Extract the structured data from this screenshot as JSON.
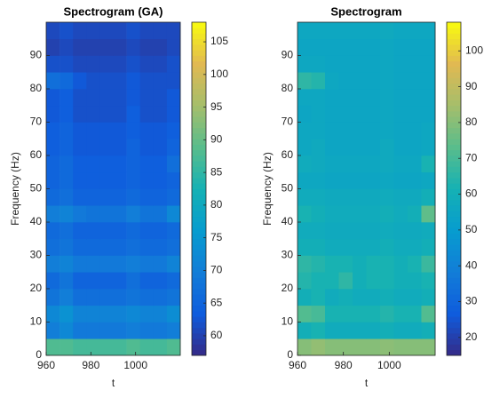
{
  "chart_data": [
    {
      "type": "heatmap",
      "title": "Spectrogram (GA)",
      "xlabel": "t",
      "ylabel": "Frequency (Hz)",
      "colormap": "parula",
      "x": [
        963,
        969,
        975,
        981,
        987,
        993,
        999,
        1005,
        1011,
        1017
      ],
      "y": [
        2.5,
        7.5,
        12.5,
        17.5,
        22.5,
        27.5,
        32.5,
        37.5,
        42.5,
        47.5,
        52.5,
        57.5,
        62.5,
        67.5,
        72.5,
        77.5,
        82.5,
        87.5,
        92.5,
        97.5
      ],
      "z": [
        [
          88,
          88,
          87,
          87,
          87,
          87,
          88,
          87,
          87,
          88
        ],
        [
          70,
          72,
          69,
          69,
          69,
          69,
          70,
          69,
          69,
          70
        ],
        [
          72,
          74,
          71,
          71,
          71,
          71,
          72,
          71,
          71,
          73
        ],
        [
          68,
          70,
          67,
          67,
          67,
          67,
          68,
          67,
          67,
          68
        ],
        [
          66,
          68,
          65,
          65,
          65,
          65,
          67,
          65,
          65,
          66
        ],
        [
          70,
          71,
          69,
          69,
          69,
          69,
          70,
          69,
          69,
          71
        ],
        [
          67,
          68,
          66,
          66,
          66,
          66,
          67,
          66,
          66,
          67
        ],
        [
          66,
          67,
          65,
          65,
          65,
          65,
          66,
          65,
          65,
          66
        ],
        [
          70,
          71,
          69,
          68,
          68,
          68,
          70,
          68,
          68,
          72
        ],
        [
          66,
          67,
          65,
          65,
          65,
          65,
          66,
          65,
          65,
          66
        ],
        [
          65,
          66,
          64,
          64,
          64,
          64,
          65,
          64,
          64,
          65
        ],
        [
          65,
          66,
          64,
          64,
          64,
          64,
          65,
          64,
          64,
          67
        ],
        [
          64,
          65,
          63,
          63,
          63,
          63,
          65,
          63,
          63,
          65
        ],
        [
          64,
          65,
          63,
          63,
          63,
          63,
          64,
          63,
          63,
          64
        ],
        [
          63,
          64,
          62,
          62,
          62,
          62,
          64,
          62,
          62,
          63
        ],
        [
          63,
          64,
          62,
          62,
          62,
          62,
          63,
          62,
          62,
          63
        ],
        [
          67,
          66,
          63,
          62,
          62,
          62,
          63,
          62,
          62,
          62
        ],
        [
          62,
          62,
          61,
          61,
          61,
          61,
          62,
          61,
          61,
          62
        ],
        [
          60,
          61,
          60,
          60,
          60,
          60,
          61,
          60,
          60,
          61
        ],
        [
          61,
          62,
          61,
          61,
          61,
          61,
          62,
          61,
          61,
          61
        ]
      ],
      "xlim": [
        960,
        1020
      ],
      "xticks": [
        960,
        980,
        1000
      ],
      "ylim": [
        0,
        100
      ],
      "yticks": [
        0,
        10,
        20,
        30,
        40,
        50,
        60,
        70,
        80,
        90
      ],
      "clim": [
        57,
        108
      ],
      "cticks": [
        60,
        65,
        70,
        75,
        80,
        85,
        90,
        95,
        100,
        105
      ]
    },
    {
      "type": "heatmap",
      "title": "Spectrogram",
      "xlabel": "t",
      "ylabel": "Frequency (Hz)",
      "colormap": "parula",
      "x": [
        963,
        969,
        975,
        981,
        987,
        993,
        999,
        1005,
        1011,
        1017
      ],
      "y": [
        2.5,
        7.5,
        12.5,
        17.5,
        22.5,
        27.5,
        32.5,
        37.5,
        42.5,
        47.5,
        52.5,
        57.5,
        62.5,
        67.5,
        72.5,
        77.5,
        82.5,
        87.5,
        92.5,
        97.5
      ],
      "z": [
        [
          80,
          82,
          80,
          80,
          80,
          80,
          81,
          80,
          80,
          80
        ],
        [
          60,
          62,
          58,
          58,
          58,
          58,
          60,
          58,
          58,
          60
        ],
        [
          72,
          70,
          62,
          62,
          62,
          62,
          64,
          62,
          62,
          72
        ],
        [
          60,
          62,
          58,
          60,
          58,
          58,
          60,
          58,
          58,
          60
        ],
        [
          64,
          62,
          62,
          66,
          60,
          62,
          62,
          60,
          60,
          62
        ],
        [
          66,
          64,
          62,
          62,
          60,
          62,
          62,
          60,
          62,
          68
        ],
        [
          60,
          60,
          58,
          58,
          58,
          58,
          60,
          58,
          58,
          60
        ],
        [
          58,
          58,
          57,
          57,
          57,
          57,
          58,
          57,
          57,
          58
        ],
        [
          62,
          60,
          58,
          58,
          58,
          58,
          60,
          58,
          60,
          74
        ],
        [
          58,
          58,
          57,
          57,
          57,
          57,
          58,
          57,
          57,
          60
        ],
        [
          56,
          56,
          55,
          55,
          55,
          55,
          56,
          55,
          55,
          56
        ],
        [
          58,
          57,
          56,
          56,
          56,
          56,
          57,
          56,
          56,
          62
        ],
        [
          56,
          57,
          55,
          55,
          55,
          55,
          57,
          55,
          55,
          56
        ],
        [
          56,
          56,
          55,
          55,
          55,
          55,
          56,
          55,
          55,
          56
        ],
        [
          55,
          56,
          55,
          55,
          55,
          55,
          56,
          55,
          55,
          55
        ],
        [
          56,
          56,
          55,
          55,
          55,
          55,
          56,
          55,
          55,
          55
        ],
        [
          66,
          64,
          56,
          55,
          55,
          55,
          56,
          55,
          55,
          55
        ],
        [
          56,
          56,
          55,
          55,
          55,
          55,
          56,
          55,
          55,
          55
        ],
        [
          55,
          55,
          55,
          55,
          55,
          55,
          56,
          55,
          55,
          55
        ],
        [
          56,
          56,
          56,
          56,
          56,
          56,
          57,
          56,
          56,
          56
        ]
      ],
      "xlim": [
        960,
        1020
      ],
      "xticks": [
        960,
        980,
        1000
      ],
      "ylim": [
        0,
        100
      ],
      "yticks": [
        0,
        10,
        20,
        30,
        40,
        50,
        60,
        70,
        80,
        90
      ],
      "clim": [
        15,
        108
      ],
      "cticks": [
        20,
        30,
        40,
        50,
        60,
        70,
        80,
        90,
        100
      ]
    }
  ]
}
